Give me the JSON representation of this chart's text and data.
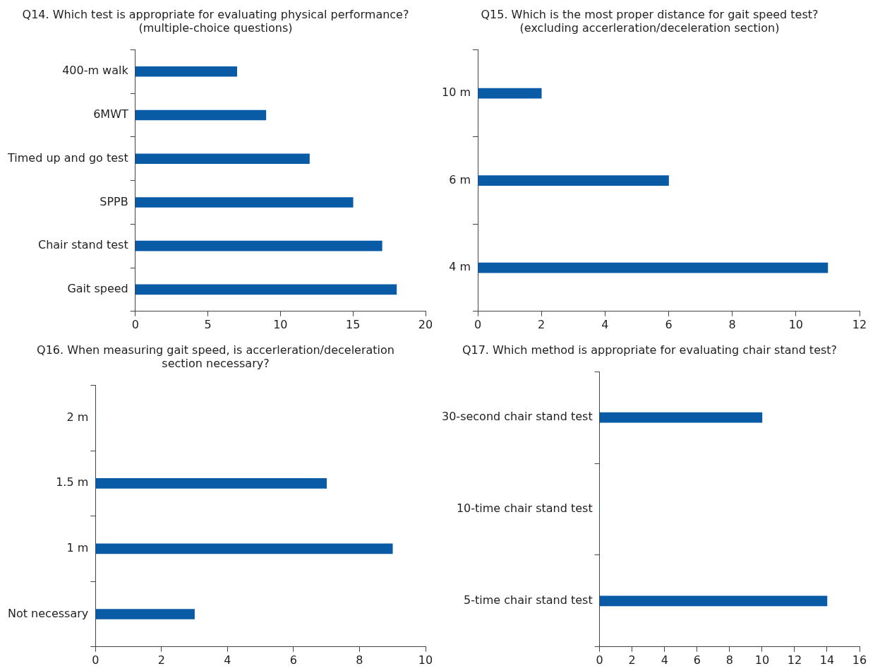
{
  "chart_data": [
    {
      "type": "bar",
      "orientation": "horizontal",
      "title": "Q14. Which test is appropriate for evaluating physical performance?\n(multiple-choice questions)",
      "categories": [
        "400-m walk",
        "6MWT",
        "Timed up and go test",
        "SPPB",
        "Chair stand test",
        "Gait speed"
      ],
      "values": [
        7,
        9,
        12,
        15,
        17,
        18
      ],
      "color": "#0a5ba5",
      "xlim": [
        0,
        20
      ],
      "xticks": [
        0,
        5,
        10,
        15,
        20
      ],
      "grid": false,
      "legend": false
    },
    {
      "type": "bar",
      "orientation": "horizontal",
      "title": "Q15. Which is the most proper distance for gait speed test?\n(excluding accerleration/deceleration section)",
      "categories": [
        "10 m",
        "6 m",
        "4 m"
      ],
      "values": [
        2,
        6,
        11
      ],
      "color": "#0a5ba5",
      "xlim": [
        0,
        12
      ],
      "xticks": [
        0,
        2,
        4,
        6,
        8,
        10,
        12
      ],
      "grid": false,
      "legend": false
    },
    {
      "type": "bar",
      "orientation": "horizontal",
      "title": "Q16. When measuring gait speed, is accerleration/deceleration\nsection necessary?",
      "categories": [
        "2 m",
        "1.5 m",
        "1 m",
        "Not necessary"
      ],
      "values": [
        0,
        7,
        9,
        3
      ],
      "color": "#0a5ba5",
      "xlim": [
        0,
        10
      ],
      "xticks": [
        0,
        2,
        4,
        6,
        8,
        10
      ],
      "grid": false,
      "legend": false
    },
    {
      "type": "bar",
      "orientation": "horizontal",
      "title": "Q17. Which method is appropriate for evaluating chair stand test?",
      "categories": [
        "30-second chair stand test",
        "10-time chair stand test",
        "5-time chair stand test"
      ],
      "values": [
        10,
        0,
        14
      ],
      "color": "#0a5ba5",
      "xlim": [
        0,
        16
      ],
      "xticks": [
        0,
        2,
        4,
        6,
        8,
        10,
        12,
        14,
        16
      ],
      "grid": false,
      "legend": false
    }
  ]
}
